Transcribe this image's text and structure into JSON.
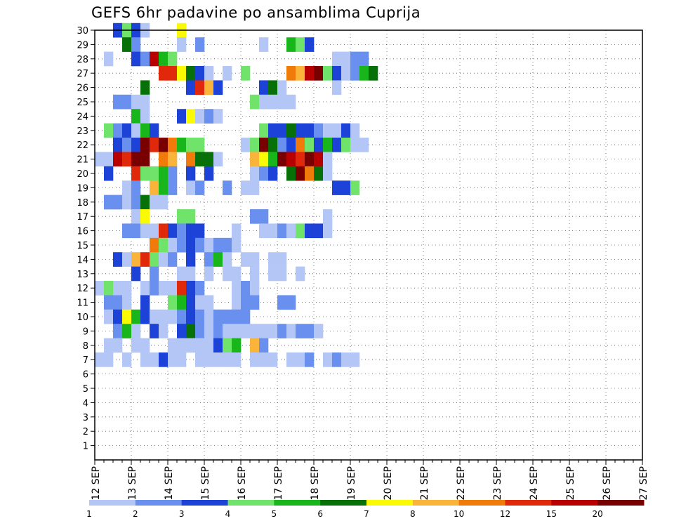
{
  "chart_data": {
    "type": "heatmap",
    "title": "GEFS 6hr padavine po ansamblima Cuprija",
    "x_tick_labels": [
      "12 SEP",
      "13 SEP",
      "14 SEP",
      "15 SEP",
      "16 SEP",
      "17 SEP",
      "18 SEP",
      "19 SEP",
      "20 SEP",
      "21 SEP",
      "22 SEP",
      "23 SEP",
      "24 SEP",
      "25 SEP",
      "26 SEP",
      "27 SEP"
    ],
    "y_tick_labels": [
      "1",
      "2",
      "3",
      "4",
      "5",
      "6",
      "7",
      "8",
      "9",
      "10",
      "11",
      "12",
      "13",
      "14",
      "15",
      "16",
      "17",
      "18",
      "19",
      "20",
      "21",
      "22",
      "23",
      "24",
      "25",
      "26",
      "27",
      "28",
      "29",
      "30"
    ],
    "xlim": [
      0,
      60
    ],
    "ylim": [
      0,
      30
    ],
    "x_step_hours": 6,
    "grid": true,
    "legend": {
      "position": "bottom",
      "labels": [
        "1",
        "2",
        "3",
        "4",
        "5",
        "6",
        "7",
        "8",
        "10",
        "12",
        "15",
        "20"
      ],
      "colors": [
        "#b4c6f5",
        "#6a90ef",
        "#1c42d8",
        "#6fe36a",
        "#19b61b",
        "#087008",
        "#fafa05",
        "#fbb43a",
        "#f07a0a",
        "#e0280a",
        "#b80000",
        "#780000"
      ]
    },
    "cells": [
      [
        2,
        30,
        3
      ],
      [
        3,
        30,
        4
      ],
      [
        4,
        30,
        3
      ],
      [
        5,
        30,
        1
      ],
      [
        9,
        30,
        7
      ],
      [
        3,
        29,
        6
      ],
      [
        4,
        29,
        2
      ],
      [
        9,
        29,
        1
      ],
      [
        11,
        29,
        2
      ],
      [
        18,
        29,
        1
      ],
      [
        21,
        29,
        5
      ],
      [
        22,
        29,
        4
      ],
      [
        23,
        29,
        3
      ],
      [
        1,
        28,
        1
      ],
      [
        4,
        28,
        3
      ],
      [
        5,
        28,
        2
      ],
      [
        6,
        28,
        11
      ],
      [
        7,
        28,
        5
      ],
      [
        8,
        28,
        4
      ],
      [
        26,
        28,
        1
      ],
      [
        27,
        28,
        1
      ],
      [
        28,
        28,
        2
      ],
      [
        29,
        28,
        2
      ],
      [
        7,
        27,
        10
      ],
      [
        8,
        27,
        10
      ],
      [
        9,
        27,
        7
      ],
      [
        10,
        27,
        6
      ],
      [
        11,
        27,
        3
      ],
      [
        12,
        27,
        1
      ],
      [
        14,
        27,
        1
      ],
      [
        16,
        27,
        4
      ],
      [
        21,
        27,
        9
      ],
      [
        22,
        27,
        8
      ],
      [
        23,
        27,
        11
      ],
      [
        24,
        27,
        12
      ],
      [
        25,
        27,
        4
      ],
      [
        26,
        27,
        3
      ],
      [
        27,
        27,
        1
      ],
      [
        28,
        27,
        2
      ],
      [
        29,
        27,
        5
      ],
      [
        30,
        27,
        6
      ],
      [
        5,
        26,
        6
      ],
      [
        10,
        26,
        3
      ],
      [
        11,
        26,
        10
      ],
      [
        12,
        26,
        8
      ],
      [
        13,
        26,
        3
      ],
      [
        18,
        26,
        3
      ],
      [
        19,
        26,
        6
      ],
      [
        20,
        26,
        1
      ],
      [
        26,
        26,
        1
      ],
      [
        2,
        25,
        2
      ],
      [
        3,
        25,
        2
      ],
      [
        4,
        25,
        1
      ],
      [
        5,
        25,
        1
      ],
      [
        17,
        25,
        4
      ],
      [
        18,
        25,
        1
      ],
      [
        19,
        25,
        1
      ],
      [
        20,
        25,
        1
      ],
      [
        21,
        25,
        1
      ],
      [
        4,
        24,
        5
      ],
      [
        5,
        24,
        1
      ],
      [
        9,
        24,
        3
      ],
      [
        10,
        24,
        7
      ],
      [
        11,
        24,
        1
      ],
      [
        12,
        24,
        2
      ],
      [
        13,
        24,
        1
      ],
      [
        1,
        23,
        4
      ],
      [
        2,
        23,
        2
      ],
      [
        3,
        23,
        3
      ],
      [
        4,
        23,
        1
      ],
      [
        5,
        23,
        5
      ],
      [
        6,
        23,
        3
      ],
      [
        18,
        23,
        4
      ],
      [
        19,
        23,
        3
      ],
      [
        20,
        23,
        3
      ],
      [
        21,
        23,
        6
      ],
      [
        22,
        23,
        3
      ],
      [
        23,
        23,
        3
      ],
      [
        24,
        23,
        2
      ],
      [
        25,
        23,
        1
      ],
      [
        26,
        23,
        1
      ],
      [
        27,
        23,
        3
      ],
      [
        28,
        23,
        1
      ],
      [
        2,
        22,
        3
      ],
      [
        3,
        22,
        2
      ],
      [
        4,
        22,
        3
      ],
      [
        5,
        22,
        12
      ],
      [
        6,
        22,
        10
      ],
      [
        7,
        22,
        12
      ],
      [
        8,
        22,
        9
      ],
      [
        9,
        22,
        5
      ],
      [
        10,
        22,
        4
      ],
      [
        11,
        22,
        4
      ],
      [
        16,
        22,
        1
      ],
      [
        17,
        22,
        4
      ],
      [
        18,
        22,
        12
      ],
      [
        19,
        22,
        6
      ],
      [
        20,
        22,
        2
      ],
      [
        21,
        22,
        3
      ],
      [
        22,
        22,
        9
      ],
      [
        23,
        22,
        4
      ],
      [
        24,
        22,
        3
      ],
      [
        25,
        22,
        5
      ],
      [
        26,
        22,
        3
      ],
      [
        27,
        22,
        4
      ],
      [
        28,
        22,
        1
      ],
      [
        29,
        22,
        1
      ],
      [
        0,
        21,
        1
      ],
      [
        1,
        21,
        1
      ],
      [
        2,
        21,
        11
      ],
      [
        3,
        21,
        10
      ],
      [
        4,
        21,
        12
      ],
      [
        5,
        21,
        12
      ],
      [
        7,
        21,
        9
      ],
      [
        8,
        21,
        8
      ],
      [
        10,
        21,
        9
      ],
      [
        11,
        21,
        6
      ],
      [
        12,
        21,
        6
      ],
      [
        13,
        21,
        1
      ],
      [
        17,
        21,
        8
      ],
      [
        18,
        21,
        7
      ],
      [
        19,
        21,
        5
      ],
      [
        20,
        21,
        12
      ],
      [
        21,
        21,
        11
      ],
      [
        22,
        21,
        10
      ],
      [
        23,
        21,
        12
      ],
      [
        24,
        21,
        11
      ],
      [
        25,
        21,
        1
      ],
      [
        1,
        20,
        3
      ],
      [
        4,
        20,
        10
      ],
      [
        5,
        20,
        4
      ],
      [
        6,
        20,
        4
      ],
      [
        7,
        20,
        5
      ],
      [
        8,
        20,
        2
      ],
      [
        10,
        20,
        3
      ],
      [
        12,
        20,
        3
      ],
      [
        17,
        20,
        1
      ],
      [
        18,
        20,
        2
      ],
      [
        19,
        20,
        3
      ],
      [
        21,
        20,
        6
      ],
      [
        22,
        20,
        12
      ],
      [
        23,
        20,
        9
      ],
      [
        24,
        20,
        6
      ],
      [
        25,
        20,
        1
      ],
      [
        3,
        19,
        1
      ],
      [
        4,
        19,
        2
      ],
      [
        6,
        19,
        8
      ],
      [
        7,
        19,
        5
      ],
      [
        8,
        19,
        2
      ],
      [
        10,
        19,
        1
      ],
      [
        11,
        19,
        2
      ],
      [
        14,
        19,
        2
      ],
      [
        16,
        19,
        1
      ],
      [
        17,
        19,
        1
      ],
      [
        26,
        19,
        3
      ],
      [
        27,
        19,
        3
      ],
      [
        28,
        19,
        4
      ],
      [
        1,
        18,
        2
      ],
      [
        2,
        18,
        2
      ],
      [
        3,
        18,
        1
      ],
      [
        4,
        18,
        2
      ],
      [
        5,
        18,
        6
      ],
      [
        6,
        18,
        1
      ],
      [
        7,
        18,
        1
      ],
      [
        4,
        17,
        1
      ],
      [
        5,
        17,
        7
      ],
      [
        9,
        17,
        4
      ],
      [
        10,
        17,
        4
      ],
      [
        17,
        17,
        2
      ],
      [
        18,
        17,
        2
      ],
      [
        25,
        17,
        1
      ],
      [
        3,
        16,
        2
      ],
      [
        4,
        16,
        2
      ],
      [
        5,
        16,
        1
      ],
      [
        6,
        16,
        1
      ],
      [
        7,
        16,
        10
      ],
      [
        8,
        16,
        3
      ],
      [
        9,
        16,
        2
      ],
      [
        10,
        16,
        3
      ],
      [
        11,
        16,
        3
      ],
      [
        15,
        16,
        1
      ],
      [
        18,
        16,
        1
      ],
      [
        19,
        16,
        1
      ],
      [
        20,
        16,
        2
      ],
      [
        21,
        16,
        1
      ],
      [
        22,
        16,
        4
      ],
      [
        23,
        16,
        3
      ],
      [
        24,
        16,
        3
      ],
      [
        25,
        16,
        1
      ],
      [
        6,
        15,
        9
      ],
      [
        7,
        15,
        4
      ],
      [
        8,
        15,
        1
      ],
      [
        9,
        15,
        2
      ],
      [
        10,
        15,
        3
      ],
      [
        11,
        15,
        2
      ],
      [
        12,
        15,
        1
      ],
      [
        13,
        15,
        2
      ],
      [
        14,
        15,
        2
      ],
      [
        15,
        15,
        1
      ],
      [
        2,
        14,
        3
      ],
      [
        3,
        14,
        1
      ],
      [
        4,
        14,
        8
      ],
      [
        5,
        14,
        10
      ],
      [
        6,
        14,
        4
      ],
      [
        7,
        14,
        1
      ],
      [
        8,
        14,
        2
      ],
      [
        10,
        14,
        3
      ],
      [
        12,
        14,
        2
      ],
      [
        13,
        14,
        5
      ],
      [
        14,
        14,
        1
      ],
      [
        16,
        14,
        1
      ],
      [
        17,
        14,
        1
      ],
      [
        19,
        14,
        1
      ],
      [
        20,
        14,
        1
      ],
      [
        4,
        13,
        3
      ],
      [
        6,
        13,
        2
      ],
      [
        9,
        13,
        1
      ],
      [
        10,
        13,
        1
      ],
      [
        12,
        13,
        1
      ],
      [
        14,
        13,
        1
      ],
      [
        15,
        13,
        1
      ],
      [
        17,
        13,
        1
      ],
      [
        19,
        13,
        1
      ],
      [
        20,
        13,
        1
      ],
      [
        22,
        13,
        1
      ],
      [
        0,
        12,
        1
      ],
      [
        1,
        12,
        4
      ],
      [
        2,
        12,
        1
      ],
      [
        3,
        12,
        1
      ],
      [
        5,
        12,
        1
      ],
      [
        6,
        12,
        2
      ],
      [
        7,
        12,
        1
      ],
      [
        8,
        12,
        1
      ],
      [
        9,
        12,
        10
      ],
      [
        10,
        12,
        3
      ],
      [
        11,
        12,
        2
      ],
      [
        15,
        12,
        1
      ],
      [
        16,
        12,
        2
      ],
      [
        17,
        12,
        1
      ],
      [
        1,
        11,
        2
      ],
      [
        2,
        11,
        2
      ],
      [
        3,
        11,
        1
      ],
      [
        5,
        11,
        3
      ],
      [
        8,
        11,
        4
      ],
      [
        9,
        11,
        5
      ],
      [
        10,
        11,
        3
      ],
      [
        11,
        11,
        1
      ],
      [
        12,
        11,
        1
      ],
      [
        15,
        11,
        1
      ],
      [
        16,
        11,
        2
      ],
      [
        17,
        11,
        2
      ],
      [
        20,
        11,
        2
      ],
      [
        21,
        11,
        2
      ],
      [
        1,
        10,
        1
      ],
      [
        2,
        10,
        3
      ],
      [
        3,
        10,
        7
      ],
      [
        4,
        10,
        5
      ],
      [
        5,
        10,
        3
      ],
      [
        6,
        10,
        1
      ],
      [
        7,
        10,
        1
      ],
      [
        8,
        10,
        1
      ],
      [
        9,
        10,
        2
      ],
      [
        10,
        10,
        3
      ],
      [
        11,
        10,
        2
      ],
      [
        12,
        10,
        1
      ],
      [
        13,
        10,
        2
      ],
      [
        14,
        10,
        2
      ],
      [
        15,
        10,
        2
      ],
      [
        16,
        10,
        2
      ],
      [
        2,
        9,
        2
      ],
      [
        3,
        9,
        5
      ],
      [
        4,
        9,
        1
      ],
      [
        6,
        9,
        3
      ],
      [
        7,
        9,
        1
      ],
      [
        9,
        9,
        3
      ],
      [
        10,
        9,
        6
      ],
      [
        11,
        9,
        2
      ],
      [
        12,
        9,
        1
      ],
      [
        13,
        9,
        2
      ],
      [
        14,
        9,
        1
      ],
      [
        15,
        9,
        1
      ],
      [
        16,
        9,
        1
      ],
      [
        17,
        9,
        1
      ],
      [
        18,
        9,
        1
      ],
      [
        19,
        9,
        1
      ],
      [
        20,
        9,
        2
      ],
      [
        21,
        9,
        1
      ],
      [
        22,
        9,
        2
      ],
      [
        23,
        9,
        2
      ],
      [
        24,
        9,
        1
      ],
      [
        1,
        8,
        1
      ],
      [
        2,
        8,
        1
      ],
      [
        4,
        8,
        1
      ],
      [
        5,
        8,
        1
      ],
      [
        8,
        8,
        1
      ],
      [
        9,
        8,
        1
      ],
      [
        10,
        8,
        1
      ],
      [
        11,
        8,
        1
      ],
      [
        12,
        8,
        1
      ],
      [
        13,
        8,
        3
      ],
      [
        14,
        8,
        4
      ],
      [
        15,
        8,
        5
      ],
      [
        17,
        8,
        8
      ],
      [
        18,
        8,
        2
      ],
      [
        0,
        7,
        1
      ],
      [
        1,
        7,
        1
      ],
      [
        3,
        7,
        1
      ],
      [
        5,
        7,
        1
      ],
      [
        6,
        7,
        1
      ],
      [
        7,
        7,
        3
      ],
      [
        8,
        7,
        1
      ],
      [
        9,
        7,
        1
      ],
      [
        11,
        7,
        1
      ],
      [
        12,
        7,
        1
      ],
      [
        13,
        7,
        1
      ],
      [
        14,
        7,
        1
      ],
      [
        15,
        7,
        1
      ],
      [
        17,
        7,
        1
      ],
      [
        18,
        7,
        1
      ],
      [
        19,
        7,
        1
      ],
      [
        21,
        7,
        1
      ],
      [
        22,
        7,
        1
      ],
      [
        23,
        7,
        2
      ],
      [
        25,
        7,
        1
      ],
      [
        26,
        7,
        2
      ],
      [
        27,
        7,
        1
      ],
      [
        28,
        7,
        1
      ]
    ]
  }
}
